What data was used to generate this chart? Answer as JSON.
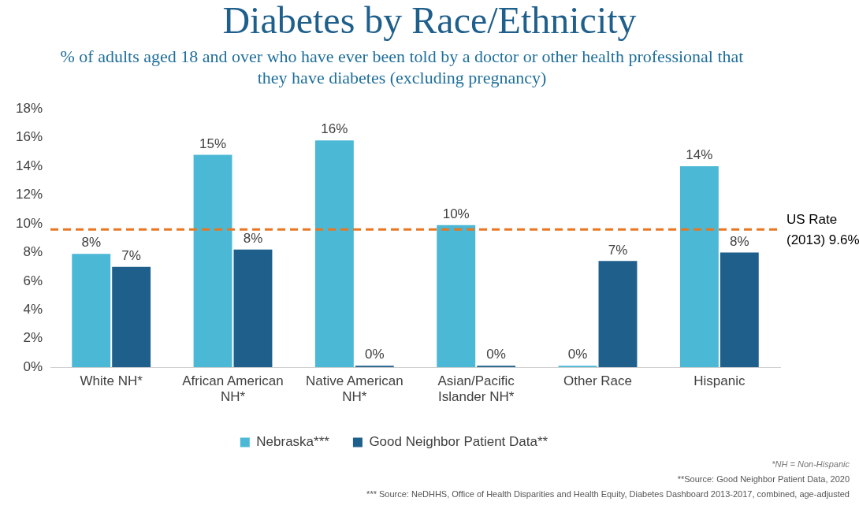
{
  "chart_data": {
    "type": "bar",
    "title": "Diabetes by Race/Ethnicity",
    "subtitle": "% of adults aged 18 and over who have ever been told by a doctor or other health professional that they have diabetes (excluding pregnancy)",
    "categories": [
      "White NH*",
      "African American NH*",
      "Native American NH*",
      "Asian/Pacific Islander NH*",
      "Other Race",
      "Hispanic"
    ],
    "series": [
      {
        "name": "Nebraska***",
        "color": "#4bb8d6",
        "values": [
          7.9,
          14.8,
          15.8,
          9.9,
          0,
          14.0
        ],
        "value_labels": [
          "8%",
          "15%",
          "16%",
          "10%",
          "0%",
          "14%"
        ]
      },
      {
        "name": "Good Neighbor Patient Data**",
        "color": "#1f5f8b",
        "values": [
          7.0,
          8.2,
          0,
          0,
          7.4,
          8.0
        ],
        "value_labels": [
          "7%",
          "8%",
          "0%",
          "0%",
          "7%",
          "8%"
        ]
      }
    ],
    "ylim": [
      0,
      18
    ],
    "yticks": [
      {
        "value": 0,
        "label": "0%"
      },
      {
        "value": 2,
        "label": "2%"
      },
      {
        "value": 4,
        "label": "4%"
      },
      {
        "value": 6,
        "label": "6%"
      },
      {
        "value": 8,
        "label": "8%"
      },
      {
        "value": 10,
        "label": "10%"
      },
      {
        "value": 12,
        "label": "12%"
      },
      {
        "value": 14,
        "label": "14%"
      },
      {
        "value": 16,
        "label": "16%"
      },
      {
        "value": 18,
        "label": "18%"
      }
    ],
    "ref_lines": [
      {
        "axis": "y",
        "value": 9.6,
        "label": "US Rate (2013) 9.6%",
        "color": "#e87722",
        "line_style": "dashed"
      }
    ],
    "legend": "bottom",
    "grid": false,
    "annotations": [
      "*NH = Non-Hispanic",
      "**Source: Good Neighbor Patient Data, 2020",
      "*** Source: NeDHHS, Office of Health Disparities and Health Equity, Diabetes Dashboard     2013-2017, combined, age-adjusted"
    ]
  }
}
